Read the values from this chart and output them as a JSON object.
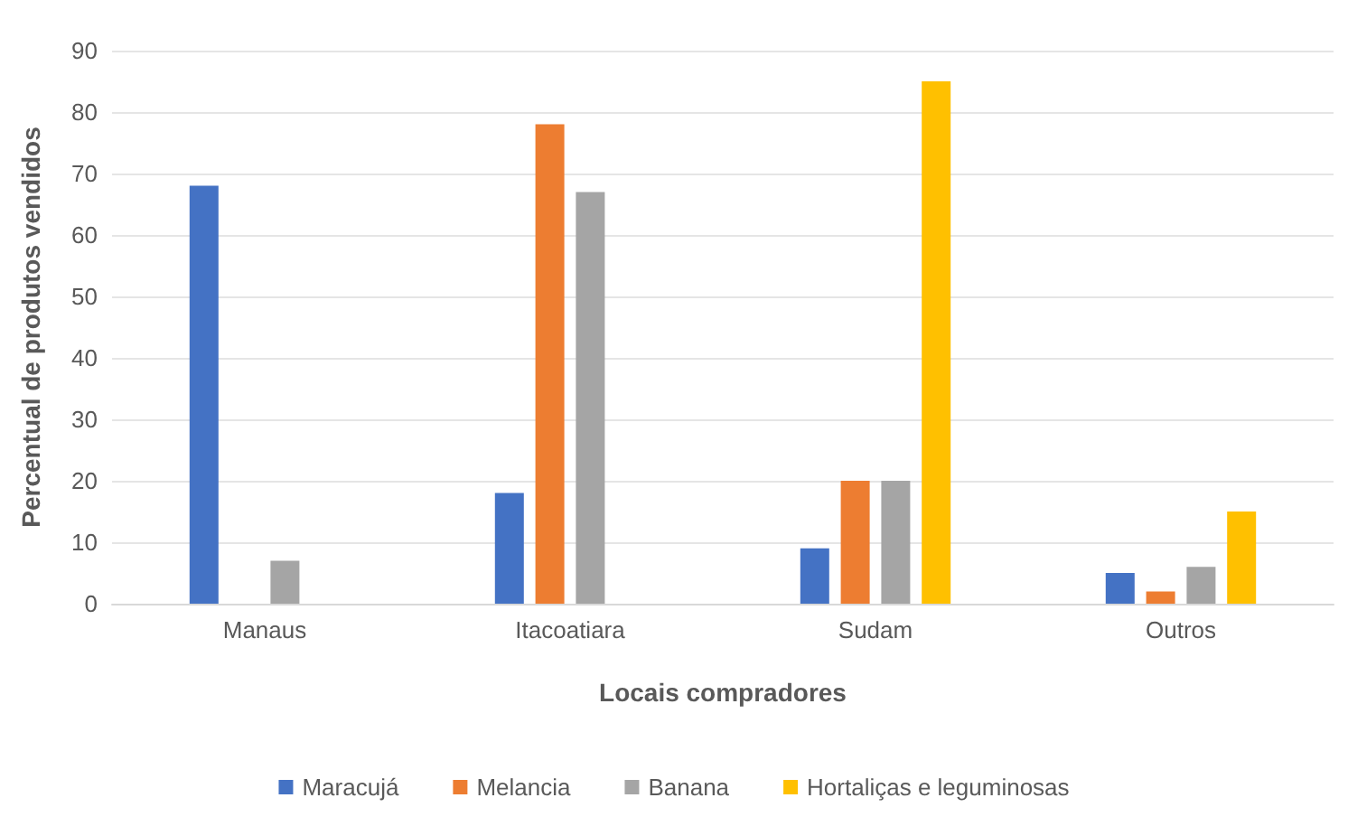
{
  "chart_data": {
    "type": "bar",
    "xlabel": "Locais compradores",
    "ylabel": "Percentual de produtos vendidos",
    "categories": [
      "Manaus",
      "Itacoatiara",
      "Sudam",
      "Outros"
    ],
    "series": [
      {
        "name": "Maracujá",
        "color": "#4472c4",
        "values": [
          68,
          18,
          9,
          5
        ]
      },
      {
        "name": "Melancia",
        "color": "#ed7d31",
        "values": [
          0,
          78,
          20,
          2
        ]
      },
      {
        "name": "Banana",
        "color": "#a5a5a5",
        "values": [
          7,
          67,
          20,
          6
        ]
      },
      {
        "name": "Hortaliças e leguminosas",
        "color": "#ffc000",
        "values": [
          0,
          0,
          85,
          15
        ]
      }
    ],
    "ylim": [
      0,
      90
    ],
    "yticks": [
      0,
      10,
      20,
      30,
      40,
      50,
      60,
      70,
      80,
      90
    ],
    "grid": "y",
    "legend": "bottom"
  }
}
